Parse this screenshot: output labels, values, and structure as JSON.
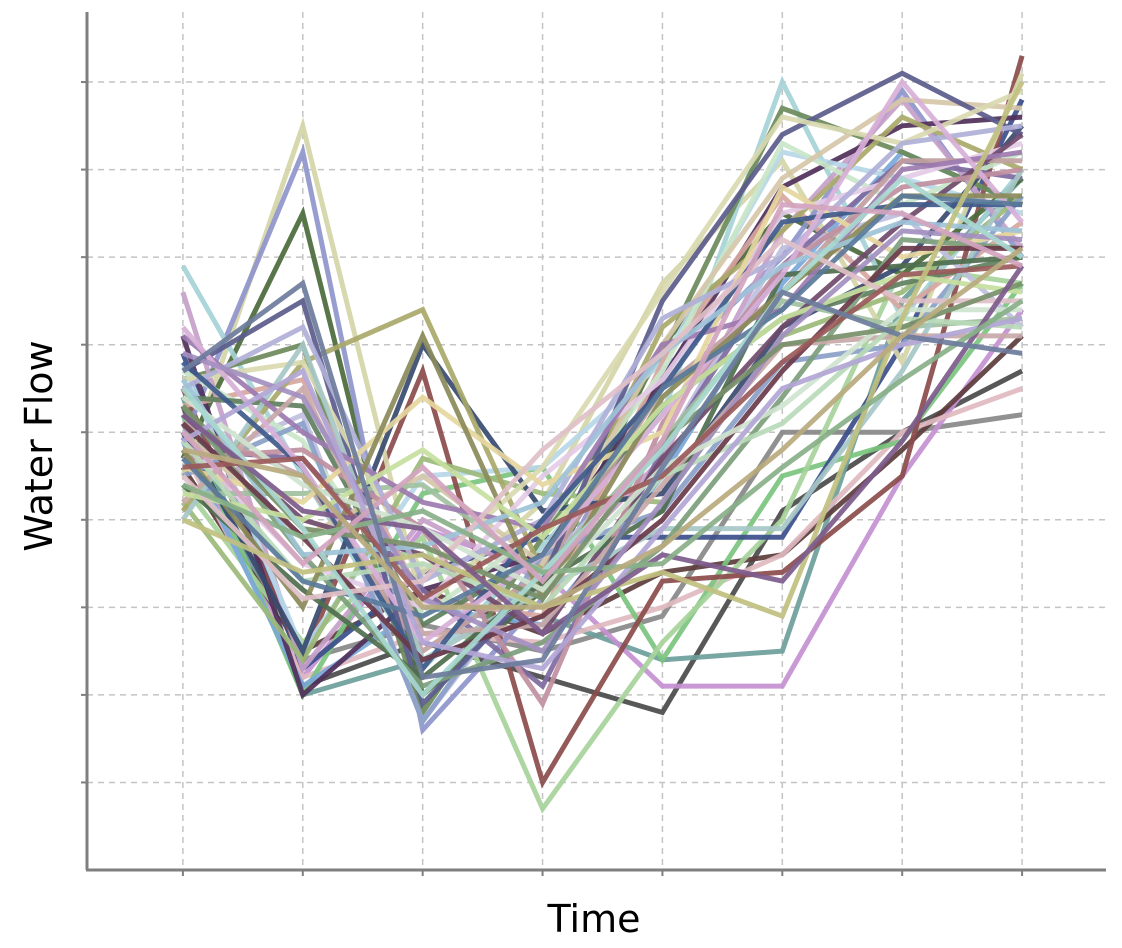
{
  "chart_data": {
    "type": "line",
    "title": "",
    "xlabel": "Time",
    "ylabel": "Water Flow",
    "x": [
      1,
      2,
      3,
      4,
      5,
      6,
      7,
      8
    ],
    "xlim": [
      0.2,
      8.7
    ],
    "ylim": [
      0,
      9.8
    ],
    "xticks": [
      1,
      2,
      3,
      4,
      5,
      6,
      7,
      8
    ],
    "yticks": [
      1,
      2,
      3,
      4,
      5,
      6,
      7,
      8,
      9
    ],
    "tick_labels_shown": false,
    "grid": true,
    "legend": "none",
    "series_count": 64,
    "series": [
      {
        "color": "#4a4a4a",
        "values": [
          5.3,
          2.1,
          2.6,
          2.2,
          1.8,
          4.1,
          5.0,
          5.7
        ]
      },
      {
        "color": "#888888",
        "values": [
          5.1,
          2.4,
          2.8,
          2.5,
          2.9,
          5.0,
          5.0,
          5.2
        ]
      },
      {
        "color": "#6d9e9a",
        "values": [
          5.4,
          2.0,
          2.4,
          2.9,
          2.4,
          2.5,
          6.5,
          7.9
        ]
      },
      {
        "color": "#c490d1",
        "values": [
          5.0,
          2.2,
          3.9,
          3.4,
          2.1,
          2.1,
          4.5,
          6.4
        ]
      },
      {
        "color": "#5c3c3c",
        "values": [
          4.6,
          2.5,
          3.2,
          2.7,
          3.4,
          3.6,
          4.8,
          6.1
        ]
      },
      {
        "color": "#e0b8c0",
        "values": [
          4.8,
          2.2,
          2.7,
          2.6,
          3.0,
          3.6,
          5.0,
          5.5
        ]
      },
      {
        "color": "#7bc47f",
        "values": [
          5.2,
          2.0,
          4.3,
          4.6,
          2.4,
          4.5,
          4.9,
          6.7
        ]
      },
      {
        "color": "#a6d39a",
        "values": [
          4.4,
          2.6,
          3.8,
          0.7,
          2.6,
          4.0,
          6.9,
          6.7
        ]
      },
      {
        "color": "#3b4e8a",
        "values": [
          5.9,
          2.3,
          3.4,
          3.8,
          3.8,
          3.8,
          6.0,
          8.8
        ]
      },
      {
        "color": "#7aa8d9",
        "values": [
          4.9,
          2.1,
          3.0,
          2.8,
          4.5,
          6.7,
          8.2,
          7.6
        ]
      },
      {
        "color": "#8b4b4b",
        "values": [
          5.5,
          2.4,
          5.7,
          1.0,
          3.3,
          3.4,
          4.5,
          9.3
        ]
      },
      {
        "color": "#d5d5a8",
        "values": [
          4.5,
          8.5,
          3.0,
          4.2,
          6.7,
          8.1,
          5.8,
          9.1
        ]
      },
      {
        "color": "#4a6a3a",
        "values": [
          4.7,
          7.5,
          2.0,
          3.2,
          6.0,
          7.5,
          6.8,
          7.9
        ]
      },
      {
        "color": "#8f95cc",
        "values": [
          4.9,
          8.2,
          1.6,
          3.1,
          5.7,
          7.0,
          8.9,
          7.0
        ]
      },
      {
        "color": "#a5d3d6",
        "values": [
          6.9,
          4.5,
          2.3,
          3.7,
          5.2,
          9.0,
          6.3,
          8.0
        ]
      },
      {
        "color": "#6b8a5a",
        "values": [
          5.6,
          6.0,
          1.8,
          3.8,
          5.9,
          8.7,
          8.2,
          7.6
        ]
      },
      {
        "color": "#c6a0c8",
        "values": [
          6.6,
          2.3,
          4.0,
          3.3,
          4.7,
          7.3,
          8.8,
          7.1
        ]
      },
      {
        "color": "#50305a",
        "values": [
          6.1,
          2.0,
          3.2,
          3.6,
          5.6,
          7.8,
          8.5,
          8.6
        ]
      },
      {
        "color": "#b7d7e8",
        "values": [
          5.8,
          2.5,
          4.5,
          4.6,
          5.8,
          8.2,
          7.9,
          7.5
        ]
      },
      {
        "color": "#9bba7a",
        "values": [
          4.2,
          2.4,
          4.7,
          4.3,
          4.2,
          6.1,
          6.6,
          7.7
        ]
      },
      {
        "color": "#d7a7a0",
        "values": [
          5.3,
          5.6,
          3.1,
          2.9,
          5.8,
          7.7,
          6.4,
          7.4
        ]
      },
      {
        "color": "#374a70",
        "values": [
          5.0,
          2.5,
          6.0,
          4.1,
          4.3,
          6.2,
          6.9,
          8.5
        ]
      },
      {
        "color": "#bfbfe0",
        "values": [
          4.6,
          5.2,
          1.7,
          3.5,
          4.8,
          7.1,
          7.5,
          6.2
        ]
      },
      {
        "color": "#a8a86a",
        "values": [
          4.1,
          5.8,
          6.4,
          3.4,
          6.2,
          7.3,
          8.6,
          8.0
        ]
      },
      {
        "color": "#c9e6c9",
        "values": [
          5.7,
          4.9,
          2.9,
          3.9,
          5.7,
          8.3,
          7.6,
          8.2
        ]
      },
      {
        "color": "#7e6aa0",
        "values": [
          4.8,
          4.7,
          3.2,
          2.1,
          4.8,
          6.9,
          8.1,
          7.9
        ]
      },
      {
        "color": "#d6c7a8",
        "values": [
          5.0,
          3.8,
          4.5,
          3.5,
          6.0,
          7.9,
          8.8,
          8.7
        ]
      },
      {
        "color": "#5f7f5f",
        "values": [
          5.4,
          5.3,
          2.8,
          3.6,
          5.3,
          6.3,
          6.7,
          7.0
        ]
      },
      {
        "color": "#e4cbe6",
        "values": [
          4.9,
          3.5,
          3.0,
          4.5,
          5.6,
          7.5,
          7.9,
          8.3
        ]
      },
      {
        "color": "#8aa0c8",
        "values": [
          4.5,
          5.1,
          1.7,
          3.6,
          4.1,
          5.8,
          6.0,
          7.7
        ]
      },
      {
        "color": "#c0a0a0",
        "values": [
          5.1,
          4.5,
          2.5,
          3.4,
          5.5,
          6.6,
          8.1,
          8.1
        ]
      },
      {
        "color": "#5b5b8c",
        "values": [
          5.7,
          6.5,
          1.9,
          3.3,
          6.5,
          8.4,
          9.1,
          8.4
        ]
      },
      {
        "color": "#a1c0a1",
        "values": [
          4.3,
          4.3,
          4.4,
          3.4,
          4.9,
          6.5,
          6.2,
          6.3
        ]
      },
      {
        "color": "#d9d9b0",
        "values": [
          5.6,
          5.8,
          3.4,
          4.6,
          6.6,
          8.6,
          8.3,
          8.9
        ]
      },
      {
        "color": "#6f4a6a",
        "values": [
          5.2,
          4.0,
          3.6,
          2.7,
          4.7,
          6.2,
          7.4,
          8.4
        ]
      },
      {
        "color": "#a7c7c7",
        "values": [
          4.0,
          6.0,
          2.4,
          3.2,
          3.9,
          3.9,
          5.7,
          8.0
        ]
      },
      {
        "color": "#c08fa0",
        "values": [
          4.7,
          4.8,
          3.9,
          1.9,
          5.1,
          6.9,
          7.8,
          8.0
        ]
      },
      {
        "color": "#4e6e4e",
        "values": [
          4.4,
          3.2,
          2.2,
          3.3,
          4.1,
          6.8,
          6.9,
          7.0
        ]
      },
      {
        "color": "#b0b0d8",
        "values": [
          5.5,
          6.2,
          3.3,
          4.0,
          6.3,
          7.0,
          8.3,
          8.5
        ]
      },
      {
        "color": "#e6d7a0",
        "values": [
          4.6,
          4.2,
          5.4,
          4.4,
          5.0,
          7.8,
          7.0,
          7.3
        ]
      },
      {
        "color": "#7c9e7c",
        "values": [
          5.3,
          3.6,
          2.1,
          2.6,
          3.7,
          5.4,
          7.2,
          7.1
        ]
      },
      {
        "color": "#9d7bb0",
        "values": [
          6.1,
          5.0,
          4.2,
          3.9,
          6.0,
          6.4,
          8.0,
          8.2
        ]
      },
      {
        "color": "#c8a8a8",
        "values": [
          4.2,
          5.5,
          2.7,
          2.8,
          4.4,
          6.0,
          6.1,
          6.1
        ]
      },
      {
        "color": "#3f5a8a",
        "values": [
          5.8,
          4.6,
          2.3,
          4.0,
          5.5,
          7.4,
          7.6,
          7.6
        ]
      },
      {
        "color": "#b9d9b9",
        "values": [
          4.9,
          3.3,
          3.5,
          3.0,
          4.5,
          5.1,
          6.3,
          6.2
        ]
      },
      {
        "color": "#d8b0d8",
        "values": [
          6.2,
          4.6,
          2.6,
          3.6,
          5.2,
          6.8,
          9.0,
          7.4
        ]
      },
      {
        "color": "#8a8a5a",
        "values": [
          4.8,
          3.0,
          6.1,
          3.1,
          5.4,
          6.6,
          7.7,
          7.7
        ]
      },
      {
        "color": "#9ec3d8",
        "values": [
          5.6,
          3.6,
          3.7,
          4.2,
          5.9,
          6.9,
          7.4,
          7.3
        ]
      },
      {
        "color": "#6a3a4a",
        "values": [
          5.1,
          3.8,
          2.4,
          2.9,
          4.0,
          5.7,
          7.1,
          7.1
        ]
      },
      {
        "color": "#c7e0a0",
        "values": [
          4.3,
          4.0,
          4.8,
          3.8,
          5.3,
          6.3,
          6.8,
          6.6
        ]
      },
      {
        "color": "#a38fc0",
        "values": [
          5.9,
          5.4,
          3.1,
          2.5,
          4.2,
          6.1,
          7.3,
          7.2
        ]
      },
      {
        "color": "#cfe3cf",
        "values": [
          5.4,
          4.4,
          3.9,
          3.2,
          4.6,
          5.3,
          6.4,
          6.4
        ]
      },
      {
        "color": "#5a7a9a",
        "values": [
          4.7,
          3.3,
          2.9,
          3.6,
          5.5,
          6.4,
          7.7,
          7.6
        ]
      },
      {
        "color": "#e0c0c8",
        "values": [
          4.5,
          3.1,
          3.3,
          4.8,
          5.9,
          7.2,
          6.5,
          6.5
        ]
      },
      {
        "color": "#78906a",
        "values": [
          5.3,
          3.9,
          3.7,
          3.1,
          4.9,
          6.0,
          6.2,
          6.7
        ]
      },
      {
        "color": "#b2a6d6",
        "values": [
          4.9,
          5.7,
          2.6,
          2.3,
          3.9,
          5.5,
          6.0,
          6.3
        ]
      },
      {
        "color": "#9a5a5a",
        "values": [
          4.6,
          4.7,
          3.1,
          3.9,
          4.5,
          5.8,
          6.8,
          6.9
        ]
      },
      {
        "color": "#a8d8d0",
        "values": [
          5.5,
          3.9,
          2.0,
          3.4,
          4.8,
          6.6,
          7.9,
          7.0
        ]
      },
      {
        "color": "#c0c080",
        "values": [
          4.0,
          3.4,
          3.6,
          3.0,
          3.4,
          2.9,
          6.3,
          9.0
        ]
      },
      {
        "color": "#7d5b8c",
        "values": [
          5.2,
          4.1,
          3.9,
          2.7,
          3.6,
          3.3,
          4.9,
          6.9
        ]
      },
      {
        "color": "#88b088",
        "values": [
          4.4,
          3.8,
          4.1,
          3.4,
          3.5,
          4.6,
          5.6,
          6.5
        ]
      },
      {
        "color": "#d2a4bf",
        "values": [
          5.0,
          3.5,
          4.6,
          3.3,
          4.9,
          7.6,
          7.5,
          6.9
        ]
      },
      {
        "color": "#6c7c9c",
        "values": [
          5.7,
          6.7,
          2.2,
          2.4,
          4.6,
          6.6,
          6.1,
          5.9
        ]
      },
      {
        "color": "#b9aa7e",
        "values": [
          4.8,
          4.5,
          3.0,
          3.0,
          3.7,
          4.8,
          6.1,
          7.1
        ]
      }
    ]
  }
}
